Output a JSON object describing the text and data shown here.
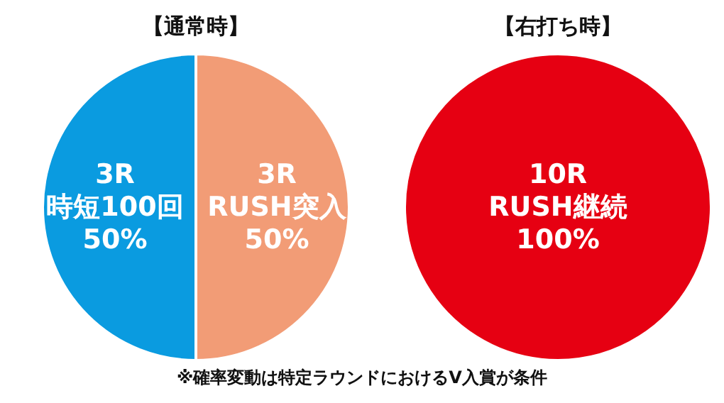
{
  "chart_data": [
    {
      "type": "pie",
      "title": "【通常時】",
      "categories": [
        "3R\n時短100回",
        "3R\nRUSH突入"
      ],
      "values": [
        50,
        50
      ],
      "colors": [
        "#0a9be0",
        "#f29c76"
      ],
      "value_labels": [
        "50%",
        "50%"
      ]
    },
    {
      "type": "pie",
      "title": "【右打ち時】",
      "categories": [
        "10R\nRUSH継続"
      ],
      "values": [
        100
      ],
      "colors": [
        "#e60012"
      ],
      "value_labels": [
        "100%"
      ],
      "annotations": [
        "※確率変動は特定ラウンドにおけるV入賞が条件"
      ]
    }
  ]
}
